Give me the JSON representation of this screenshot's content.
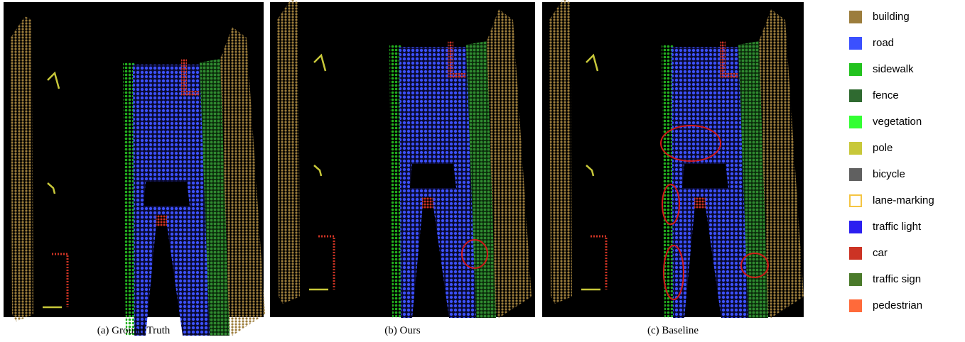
{
  "figure": {
    "panels": [
      {
        "caption": "(a) Ground Truth"
      },
      {
        "caption": "(b) Ours"
      },
      {
        "caption": "(c) Baseline"
      }
    ],
    "legend": [
      {
        "label": "building",
        "color": "#9c7d3c"
      },
      {
        "label": "road",
        "color": "#3b50ff"
      },
      {
        "label": "sidewalk",
        "color": "#22c21e"
      },
      {
        "label": "fence",
        "color": "#2f6a30"
      },
      {
        "label": "vegetation",
        "color": "#33ff33"
      },
      {
        "label": "pole",
        "color": "#c8c83a"
      },
      {
        "label": "bicycle",
        "color": "#606060"
      },
      {
        "label": "lane-marking",
        "color": "#f5c542",
        "style": "outline"
      },
      {
        "label": "traffic light",
        "color": "#2b1ff0"
      },
      {
        "label": "car",
        "color": "#cc3324"
      },
      {
        "label": "traffic sign",
        "color": "#4a7a2a"
      },
      {
        "label": "pedestrian",
        "color": "#ff6a3a"
      }
    ]
  }
}
